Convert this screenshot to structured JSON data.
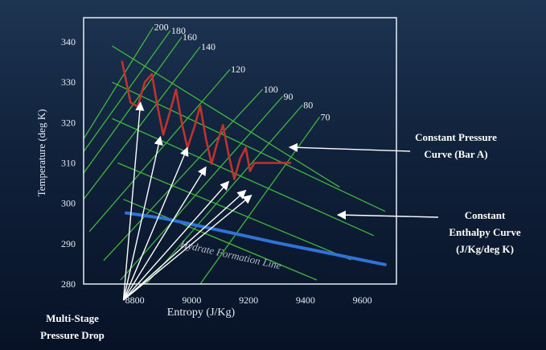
{
  "chart_data": {
    "type": "line",
    "title": "",
    "xlabel": "Entropy (J/Kg)",
    "ylabel": "Temperature (deg K)",
    "xlim": [
      8620,
      9720
    ],
    "ylim": [
      280,
      346
    ],
    "x_ticks": [
      8800,
      9000,
      9200,
      9400,
      9600
    ],
    "y_ticks": [
      280,
      290,
      300,
      310,
      320,
      330,
      340
    ],
    "grid": false,
    "series": [
      {
        "name": "Constant Pressure Curve (Bar A)",
        "color": "#3fb63f",
        "kind": "pressure",
        "lines": [
          {
            "label": "200",
            "points": [
              [
                8620,
                316
              ],
              [
                8865,
                343.7
              ]
            ]
          },
          {
            "label": "180",
            "points": [
              [
                8620,
                312.8
              ],
              [
                8925,
                342.8
              ]
            ]
          },
          {
            "label": "160",
            "points": [
              [
                8620,
                307.5
              ],
              [
                8965,
                341.2
              ]
            ]
          },
          {
            "label": "140",
            "points": [
              [
                8620,
                301
              ],
              [
                9030,
                338.8
              ]
            ]
          },
          {
            "label": "120",
            "points": [
              [
                8640,
                293
              ],
              [
                9135,
                333.2
              ]
            ]
          },
          {
            "label": "100",
            "points": [
              [
                8690,
                285.8
              ],
              [
                9250,
                328.3
              ]
            ]
          },
          {
            "label": "90",
            "points": [
              [
                8750,
                281
              ],
              [
                9320,
                326.5
              ]
            ]
          },
          {
            "label": "80",
            "points": [
              [
                8840,
                280
              ],
              [
                9390,
                324.4
              ]
            ]
          },
          {
            "label": "70",
            "points": [
              [
                9030,
                280
              ],
              [
                9450,
                321.4
              ]
            ]
          }
        ]
      },
      {
        "name": "Constant Enthalpy Curve (J/Kg/deg K)",
        "color": "#3fb63f",
        "kind": "enthalpy",
        "lines": [
          {
            "label": "",
            "points": [
              [
                8720,
                339
              ],
              [
                9520,
                304
              ]
            ]
          },
          {
            "label": "",
            "points": [
              [
                8720,
                330
              ],
              [
                9680,
                298
              ]
            ]
          },
          {
            "label": "",
            "points": [
              [
                8720,
                321
              ],
              [
                9640,
                292
              ]
            ]
          },
          {
            "label": "",
            "points": [
              [
                8740,
                310
              ],
              [
                9560,
                286
              ]
            ]
          },
          {
            "label": "",
            "points": [
              [
                8760,
                301
              ],
              [
                9440,
                281
              ]
            ]
          }
        ]
      },
      {
        "name": "Hydrate Formation Line",
        "color": "#2f73d4",
        "points": [
          [
            8770,
            297.6
          ],
          [
            8900,
            296.3
          ],
          [
            9100,
            293.3
          ],
          [
            9300,
            290.2
          ],
          [
            9500,
            287.4
          ],
          [
            9680,
            284.8
          ]
        ]
      },
      {
        "name": "Multi-Stage Pressure Drop",
        "color": "#c0322e",
        "points": [
          [
            8755,
            335.3
          ],
          [
            8785,
            325
          ],
          [
            8810,
            324
          ],
          [
            8835,
            330
          ],
          [
            8860,
            332
          ],
          [
            8880,
            324
          ],
          [
            8900,
            317
          ],
          [
            8925,
            323
          ],
          [
            8945,
            328.2
          ],
          [
            8965,
            320
          ],
          [
            8985,
            313.8
          ],
          [
            9010,
            319
          ],
          [
            9030,
            324.2
          ],
          [
            9050,
            316
          ],
          [
            9070,
            309.8
          ],
          [
            9090,
            315
          ],
          [
            9110,
            319.4
          ],
          [
            9130,
            312
          ],
          [
            9150,
            306
          ],
          [
            9170,
            311
          ],
          [
            9190,
            313.8
          ],
          [
            9205,
            308
          ],
          [
            9220,
            310
          ],
          [
            9350,
            310
          ]
        ]
      }
    ],
    "arrows": {
      "origin": [
        8760,
        276
      ],
      "targets": [
        [
          8820,
          325
        ],
        [
          8890,
          316.5
        ],
        [
          8985,
          313.8
        ],
        [
          9050,
          309
        ],
        [
          9130,
          305.4
        ],
        [
          9190,
          303.2
        ],
        [
          9210,
          302
        ]
      ]
    },
    "annotations": {
      "pressure_label": [
        "Constant Pressure",
        "Curve (Bar A)"
      ],
      "enthalpy_label": [
        "Constant",
        "Enthalpy Curve",
        "(J/Kg/deg K)"
      ],
      "hydrate_label": "Hydrate Formation Line",
      "drop_label": [
        "Multi-Stage",
        "Pressure Drop"
      ]
    }
  }
}
